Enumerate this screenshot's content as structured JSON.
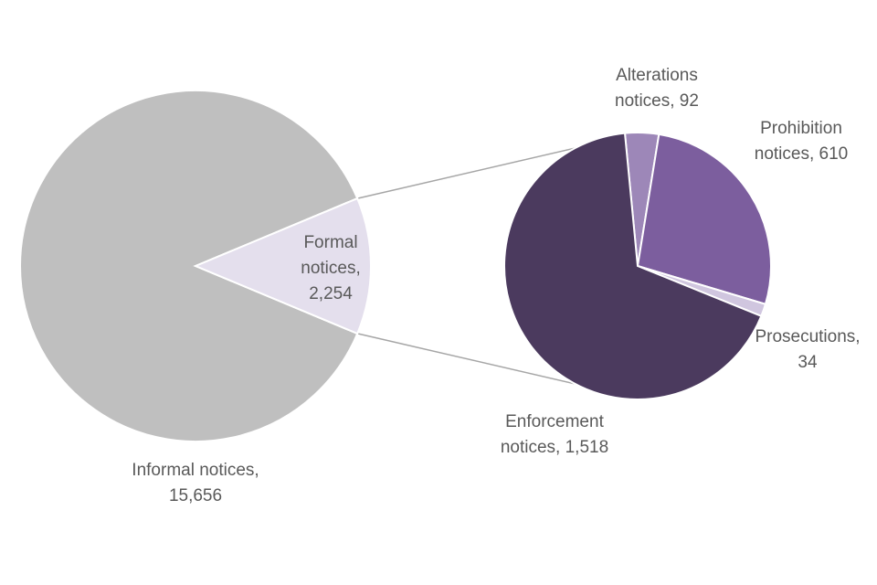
{
  "chart_data": {
    "type": "pie",
    "subtype": "pie-of-pie",
    "title": "",
    "main": {
      "slices": [
        {
          "name": "Informal notices",
          "value": 15656,
          "label_lines": [
            "Informal notices,",
            "15,656"
          ],
          "color": "#bfbfbf"
        },
        {
          "name": "Formal notices",
          "value": 2254,
          "label_lines": [
            "Formal",
            "notices,",
            "2,254"
          ],
          "color": "#e4dfed"
        }
      ]
    },
    "breakdown": {
      "of": "Formal notices",
      "slices": [
        {
          "name": "Alterations notices",
          "value": 92,
          "label_lines": [
            "Alterations",
            "notices, 92"
          ],
          "color": "#9d87b8"
        },
        {
          "name": "Prohibition notices",
          "value": 610,
          "label_lines": [
            "Prohibition",
            "notices, 610"
          ],
          "color": "#7c5e9e"
        },
        {
          "name": "Prosecutions",
          "value": 34,
          "label_lines": [
            "Prosecutions,",
            "34"
          ],
          "color": "#d0c6df"
        },
        {
          "name": "Enforcement notices",
          "value": 1518,
          "label_lines": [
            "Enforcement",
            "notices, 1,518"
          ],
          "color": "#4b3a5e"
        }
      ]
    },
    "legend": "none",
    "connector_color": "#a6a6a6",
    "label_color": "#595959"
  }
}
